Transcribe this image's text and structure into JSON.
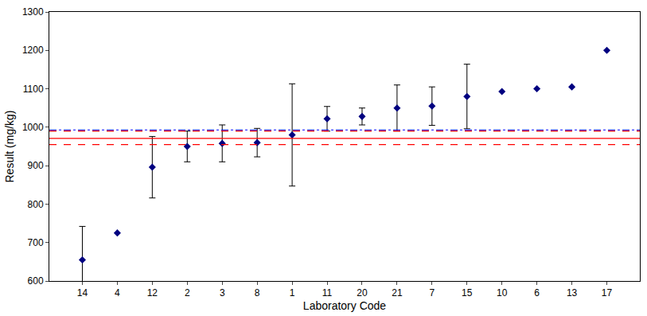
{
  "chart_data": {
    "type": "scatter",
    "x_label": "Laboratory Code",
    "y_label": "Result (mg/kg)",
    "categories": [
      "14",
      "4",
      "12",
      "2",
      "3",
      "8",
      "1",
      "11",
      "20",
      "21",
      "7",
      "15",
      "10",
      "6",
      "13",
      "17"
    ],
    "values": [
      655,
      725,
      896,
      950,
      958,
      960,
      980,
      1022,
      1028,
      1050,
      1055,
      1080,
      1093,
      1100,
      1105,
      1200
    ],
    "error": [
      87,
      null,
      80,
      40,
      48,
      37,
      133,
      32,
      22,
      60,
      50,
      84,
      null,
      null,
      null,
      null
    ],
    "color": "#000080",
    "marker": "diamond",
    "ylim": [
      600,
      1300
    ],
    "yticks": [
      600,
      700,
      800,
      900,
      1000,
      1100,
      1200,
      1300
    ],
    "grid": false,
    "reference_lines": [
      {
        "value": 971,
        "color": "#ff0000",
        "line_style": "solid"
      },
      {
        "value": 955,
        "color": "#ff0000",
        "line_style": "dash"
      },
      {
        "value": 990,
        "color": "#ff0000",
        "line_style": "dash"
      },
      {
        "value": 993,
        "color": "#0000ff",
        "line_style": "dashdot"
      }
    ]
  }
}
